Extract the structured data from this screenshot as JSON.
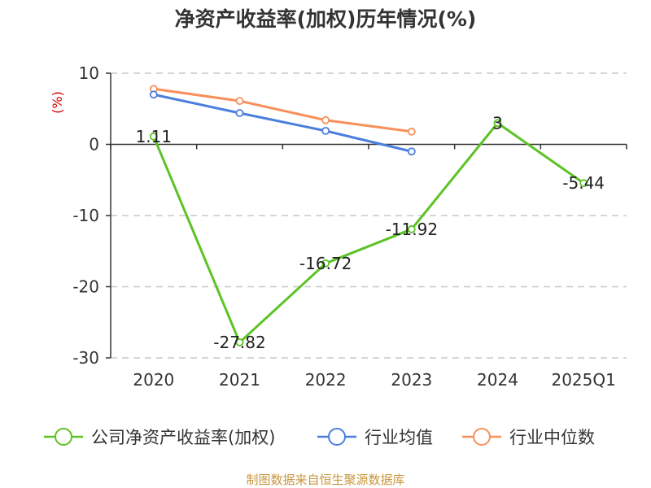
{
  "chart_data": {
    "type": "line",
    "title": "净资产收益率(加权)历年情况(%)",
    "ylabel": "(%)",
    "xlabel": "",
    "categories": [
      "2020",
      "2021",
      "2022",
      "2023",
      "2024",
      "2025Q1"
    ],
    "ylim": [
      -30,
      10
    ],
    "yticks": [
      10,
      0,
      -10,
      -20,
      -30
    ],
    "grid": true,
    "legend_position": "bottom",
    "series": [
      {
        "name": "公司净资产收益率(加权)",
        "color": "#5cc326",
        "values": [
          1.11,
          -27.82,
          -16.72,
          -11.92,
          3,
          -5.44
        ],
        "labels": [
          "1.11",
          "-27.82",
          "-16.72",
          "-11.92",
          "3",
          "-5.44"
        ]
      },
      {
        "name": "行业均值",
        "color": "#4b7fdd",
        "values": [
          7.0,
          4.4,
          1.9,
          -1.0,
          null,
          null
        ]
      },
      {
        "name": "行业中位数",
        "color": "#f7905a",
        "values": [
          7.8,
          6.1,
          3.4,
          1.8,
          null,
          null
        ]
      }
    ]
  },
  "source": "制图数据来自恒生聚源数据库"
}
